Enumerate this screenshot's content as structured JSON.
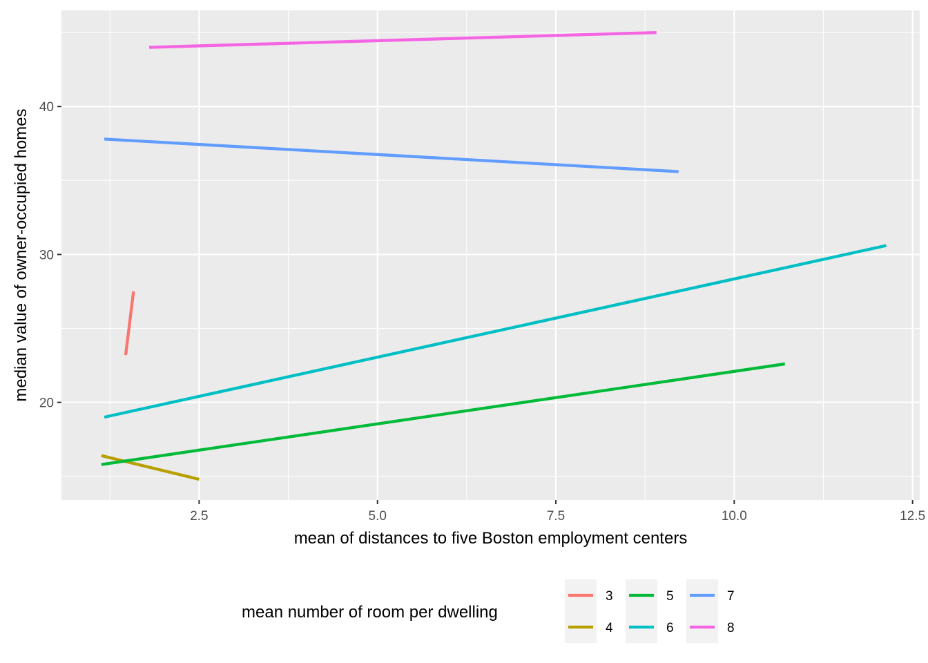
{
  "chart_data": {
    "type": "line",
    "xlabel": "mean of distances to five Boston employment centers",
    "ylabel": "median value of owner-occupied homes",
    "xlim": [
      0.57,
      12.6
    ],
    "ylim": [
      13.4,
      46.5
    ],
    "x_ticks": [
      2.5,
      5.0,
      7.5,
      10.0,
      12.5
    ],
    "x_tick_labels": [
      "2.5",
      "5.0",
      "7.5",
      "10.0",
      "12.5"
    ],
    "y_ticks": [
      20,
      30,
      40
    ],
    "y_tick_labels": [
      "20",
      "30",
      "40"
    ],
    "grid": true,
    "legend": {
      "title": "mean number of room per dwelling",
      "position": "bottom"
    },
    "series": [
      {
        "name": "3",
        "color": "#F8766D",
        "x": [
          1.47,
          1.58
        ],
        "y": [
          23.2,
          27.5
        ]
      },
      {
        "name": "4",
        "color": "#B79F00",
        "x": [
          1.13,
          2.5
        ],
        "y": [
          16.4,
          14.8
        ]
      },
      {
        "name": "5",
        "color": "#00BA38",
        "x": [
          1.13,
          10.71
        ],
        "y": [
          15.8,
          22.6
        ]
      },
      {
        "name": "6",
        "color": "#00BFC4",
        "x": [
          1.17,
          12.13
        ],
        "y": [
          19.0,
          30.6
        ]
      },
      {
        "name": "7",
        "color": "#619CFF",
        "x": [
          1.17,
          9.22
        ],
        "y": [
          37.8,
          35.6
        ]
      },
      {
        "name": "8",
        "color": "#F564E3",
        "x": [
          1.8,
          8.91
        ],
        "y": [
          44.0,
          45.0
        ]
      }
    ]
  }
}
